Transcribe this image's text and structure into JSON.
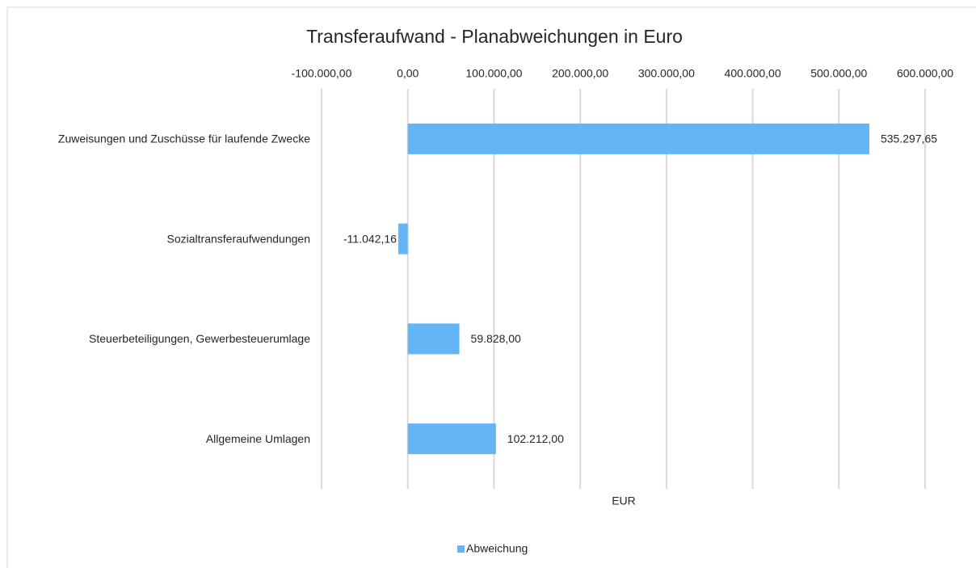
{
  "chart_data": {
    "type": "bar",
    "orientation": "horizontal",
    "title": "Transferaufwand - Planabweichungen in Euro",
    "x_label": "EUR",
    "categories": [
      "Zuweisungen und Zuschüsse für laufende Zwecke",
      "Sozialtransferaufwendungen",
      "Steuerbeteiligungen, Gewerbesteuerumlage",
      "Allgemeine Umlagen"
    ],
    "series": [
      {
        "name": "Abweichung",
        "color": "#63b5f5",
        "values": [
          535297.65,
          -11042.16,
          59828,
          102212
        ],
        "value_labels": [
          "535.297,65",
          "-11.042,16",
          "59.828,00",
          "102.212,00"
        ]
      }
    ],
    "xlim": [
      -100000,
      600000
    ],
    "xticks": [
      {
        "value": -100000,
        "label": "-100.000,00"
      },
      {
        "value": 0,
        "label": "0,00"
      },
      {
        "value": 100000,
        "label": "100.000,00"
      },
      {
        "value": 200000,
        "label": "200.000,00"
      },
      {
        "value": 300000,
        "label": "300.000,00"
      },
      {
        "value": 400000,
        "label": "400.000,00"
      },
      {
        "value": 500000,
        "label": "500.000,00"
      },
      {
        "value": 600000,
        "label": "600.000,00"
      }
    ],
    "grid": true,
    "legend": "bottom"
  }
}
